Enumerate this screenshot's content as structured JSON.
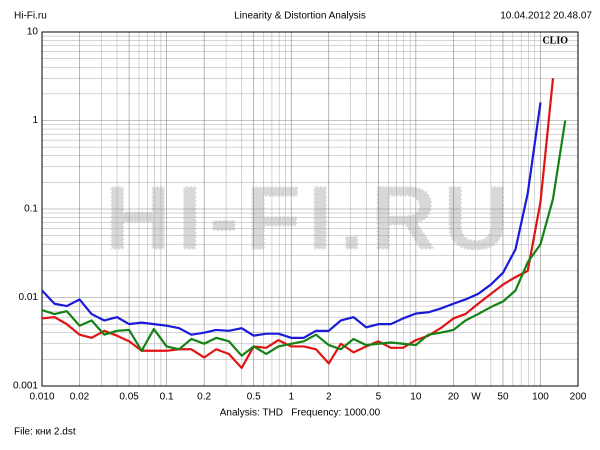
{
  "header": {
    "site": "Hi-Fi.ru",
    "title": "Linearity & Distortion Analysis",
    "timestamp": "10.04.2012 20.48.07"
  },
  "chart_data": {
    "type": "line",
    "log_x": true,
    "log_y": true,
    "grid": true,
    "brand": "CLIO",
    "watermark": "HI-FI.RU",
    "x_unit": "W",
    "x": [
      0.01,
      0.0126,
      0.0158,
      0.02,
      0.025,
      0.0316,
      0.04,
      0.05,
      0.063,
      0.079,
      0.1,
      0.126,
      0.158,
      0.2,
      0.25,
      0.316,
      0.4,
      0.5,
      0.63,
      0.79,
      1,
      1.26,
      1.58,
      2,
      2.5,
      3.16,
      4,
      5,
      6.3,
      7.9,
      10,
      12.6,
      15.8,
      20,
      25,
      31.6,
      40,
      50,
      63,
      79,
      100,
      126,
      158
    ],
    "series": [
      {
        "color": "#1a1ad8",
        "values": [
          0.012,
          0.0085,
          0.008,
          0.0095,
          0.0065,
          0.0055,
          0.006,
          0.005,
          0.0052,
          0.005,
          0.0048,
          0.0045,
          0.0038,
          0.004,
          0.0043,
          0.0042,
          0.0045,
          0.0037,
          0.0039,
          0.0039,
          0.0035,
          0.0035,
          0.0042,
          0.0042,
          0.0055,
          0.006,
          0.0046,
          0.005,
          0.005,
          0.0058,
          0.0066,
          0.0068,
          0.0075,
          0.0085,
          0.0095,
          0.011,
          0.014,
          0.019,
          0.035,
          0.15,
          1.6,
          null,
          null
        ]
      },
      {
        "color": "#e01414",
        "values": [
          0.0058,
          0.006,
          0.005,
          0.0038,
          0.0035,
          0.0042,
          0.0037,
          0.0032,
          0.0025,
          0.0025,
          0.0025,
          0.0026,
          0.0026,
          0.0021,
          0.0026,
          0.0023,
          0.0016,
          0.0028,
          0.0027,
          0.0033,
          0.0028,
          0.0028,
          0.0026,
          0.0018,
          0.003,
          0.0024,
          0.0028,
          0.0032,
          0.0027,
          0.0027,
          0.0033,
          0.0037,
          0.0045,
          0.0058,
          0.0065,
          0.0085,
          0.011,
          0.014,
          0.017,
          0.02,
          0.12,
          3.0,
          null
        ]
      },
      {
        "color": "#148214",
        "values": [
          0.0072,
          0.0065,
          0.007,
          0.0048,
          0.0055,
          0.0038,
          0.0042,
          0.0043,
          0.0025,
          0.0044,
          0.0028,
          0.0026,
          0.0034,
          0.003,
          0.0035,
          0.0032,
          0.0022,
          0.0028,
          0.0023,
          0.0028,
          0.003,
          0.0032,
          0.0038,
          0.0029,
          0.0026,
          0.0034,
          0.0029,
          0.003,
          0.0031,
          0.003,
          0.0029,
          0.0038,
          0.004,
          0.0043,
          0.0055,
          0.0065,
          0.0078,
          0.009,
          0.012,
          0.025,
          0.04,
          0.13,
          1.0
        ]
      }
    ],
    "xlim": [
      0.01,
      200
    ],
    "xticks": [
      {
        "value": 0.01,
        "label": "0.010"
      },
      0.02,
      0.05,
      0.1,
      0.2,
      0.5,
      1,
      2,
      5,
      10,
      20,
      50,
      100,
      200
    ],
    "xticks_minor": [
      0.03,
      0.04,
      0.06,
      0.07,
      0.08,
      0.09,
      0.3,
      0.4,
      0.6,
      0.7,
      0.8,
      0.9,
      3,
      4,
      6,
      7,
      8,
      9,
      30,
      40,
      60,
      70,
      80,
      90
    ],
    "ylim": [
      0.001,
      10
    ],
    "yticks": [
      0.001,
      0.01,
      0.1,
      1,
      10
    ],
    "yticks_minor": [
      0.002,
      0.003,
      0.004,
      0.005,
      0.006,
      0.007,
      0.008,
      0.009,
      0.02,
      0.03,
      0.04,
      0.05,
      0.06,
      0.07,
      0.08,
      0.09,
      0.2,
      0.3,
      0.4,
      0.5,
      0.6,
      0.7,
      0.8,
      0.9,
      2,
      3,
      4,
      5,
      6,
      7,
      8,
      9
    ]
  },
  "footer": {
    "analysis": "Analysis: THD   Frequency: 1000.00",
    "file": "File: кни 2.dst"
  }
}
